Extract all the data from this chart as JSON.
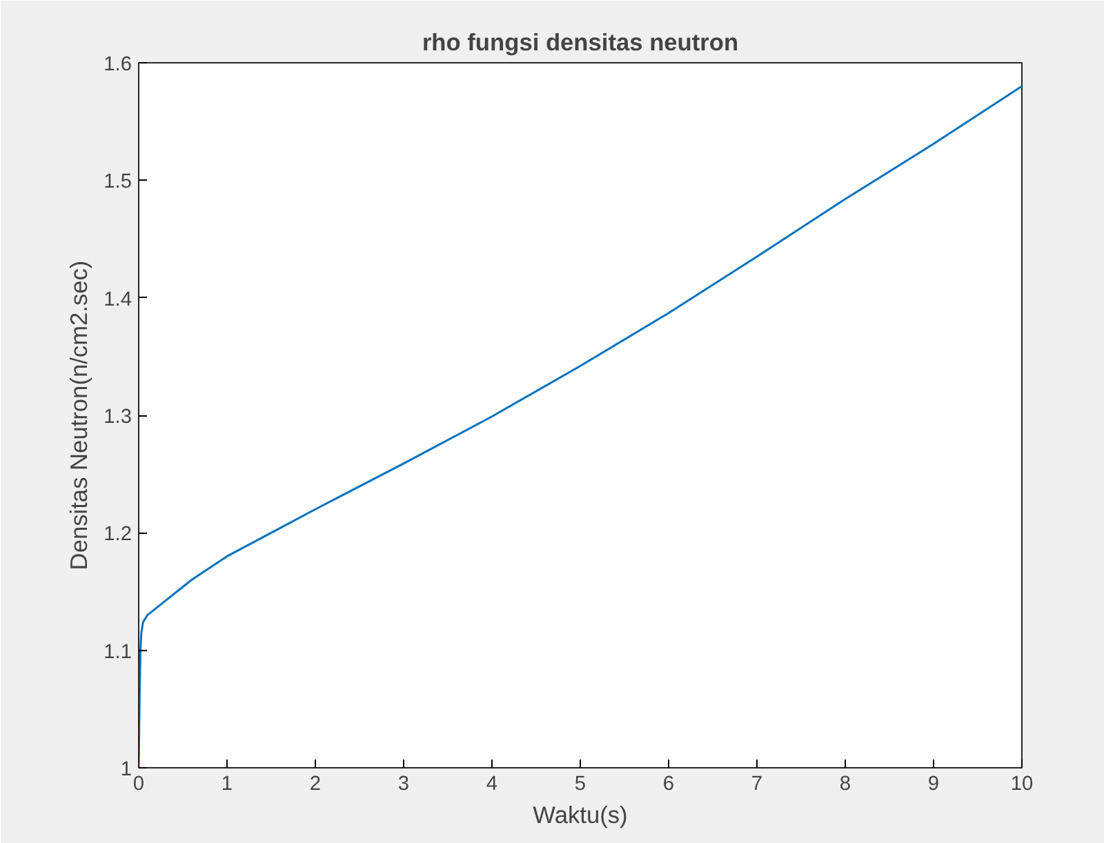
{
  "chart_data": {
    "type": "line",
    "title": "rho fungsi densitas neutron",
    "xlabel": "Waktu(s)",
    "ylabel": "Densitas Neutron(n/cm2.sec)",
    "x": [
      0,
      0.01,
      0.02,
      0.03,
      0.05,
      0.1,
      0.3,
      0.6,
      1,
      1.5,
      2,
      3,
      4,
      5,
      6,
      7,
      8,
      9,
      10
    ],
    "series": [
      {
        "color": "#0072bd",
        "values": [
          1.0,
          1.06,
          1.1,
          1.115,
          1.124,
          1.13,
          1.142,
          1.16,
          1.18,
          1.2,
          1.22,
          1.259,
          1.299,
          1.342,
          1.387,
          1.435,
          1.484,
          1.531,
          1.58
        ]
      }
    ],
    "xlim": [
      0,
      10
    ],
    "ylim": [
      1,
      1.6
    ],
    "xticks": [
      0,
      1,
      2,
      3,
      4,
      5,
      6,
      7,
      8,
      9,
      10
    ],
    "yticks": [
      1,
      1.1,
      1.2,
      1.3,
      1.4,
      1.5,
      1.6
    ],
    "grid": false
  }
}
